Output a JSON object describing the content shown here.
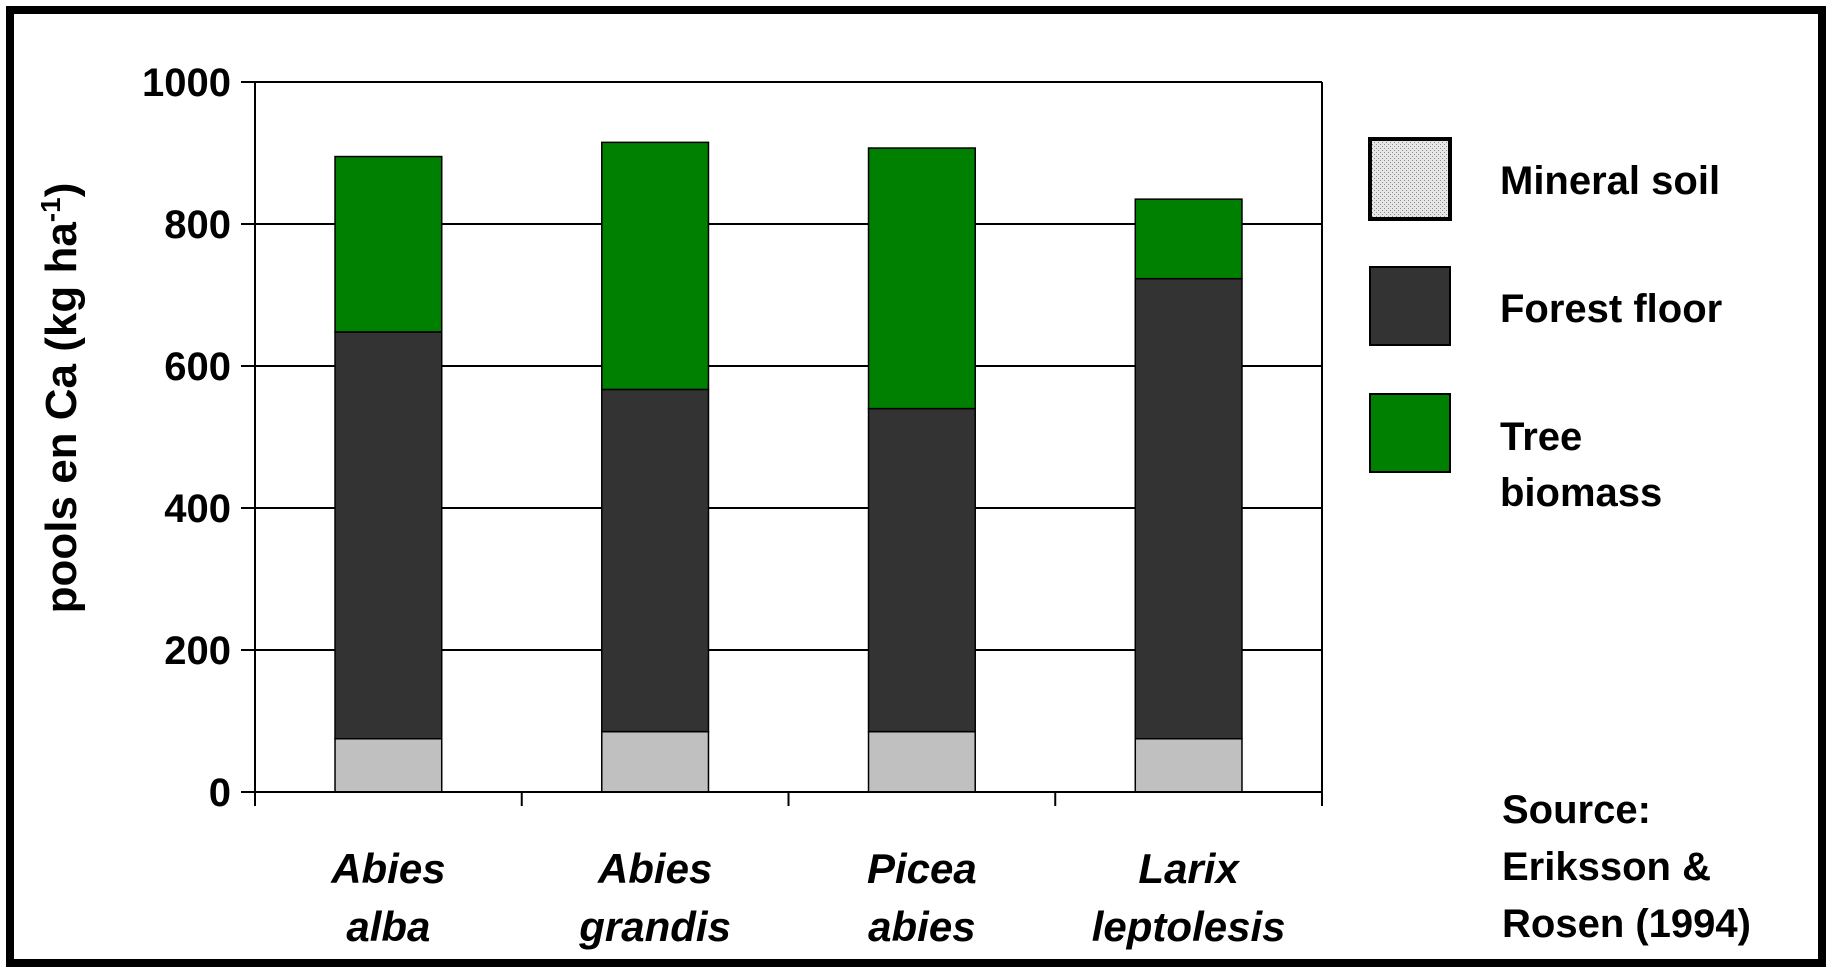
{
  "chart_data": {
    "type": "bar",
    "stacked": true,
    "categories": [
      [
        "Abies",
        "alba"
      ],
      [
        "Abies",
        "grandis"
      ],
      [
        "Picea",
        "abies"
      ],
      [
        "Larix",
        "leptolesis"
      ]
    ],
    "series": [
      {
        "name": "Mineral soil",
        "color": "#c0c0c0",
        "values": [
          75,
          85,
          85,
          75
        ]
      },
      {
        "name": "Forest floor",
        "color": "#333333",
        "values": [
          573,
          482,
          455,
          648
        ]
      },
      {
        "name": "Tree biomass",
        "color": "#008000",
        "values": [
          247,
          348,
          367,
          112
        ]
      }
    ],
    "legend": [
      {
        "lines": [
          "Mineral soil"
        ]
      },
      {
        "lines": [
          "Forest floor"
        ]
      },
      {
        "lines": [
          "Tree",
          "biomass"
        ]
      }
    ],
    "ylabel": "pools en Ca (kg ha",
    "ylabel_sup": "-1",
    "ylabel_suffix": ")",
    "ylim": [
      0,
      1000
    ],
    "yticks": [
      "0",
      "200",
      "400",
      "600",
      "800",
      "1000"
    ],
    "grid": true,
    "legend_position": "right",
    "source": [
      "Source:",
      "Eriksson &",
      "Rosen (1994)"
    ]
  }
}
